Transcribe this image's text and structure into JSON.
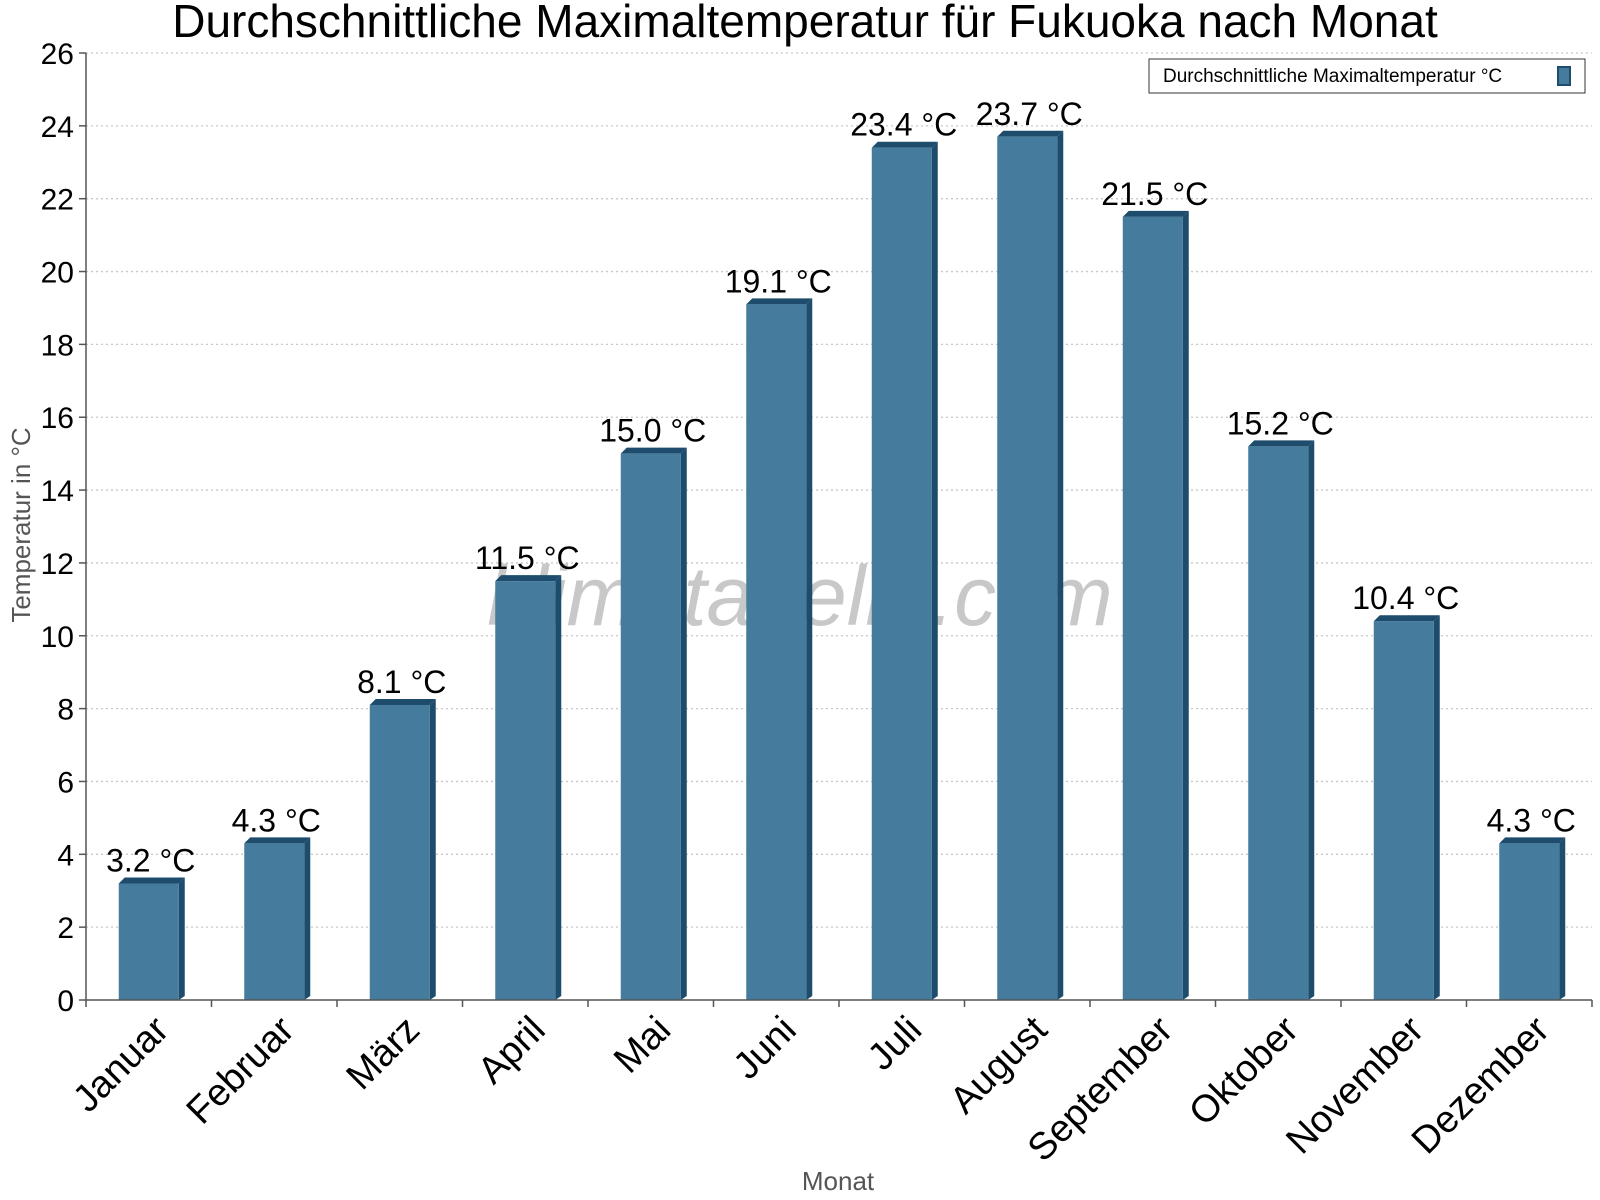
{
  "chart_data": {
    "type": "bar",
    "title": "Durchschnittliche Maximaltemperatur für Fukuoka nach Monat",
    "xlabel": "Monat",
    "ylabel": "Temperatur in °C",
    "categories": [
      "Januar",
      "Februar",
      "März",
      "April",
      "Mai",
      "Juni",
      "Juli",
      "August",
      "September",
      "Oktober",
      "November",
      "Dezember"
    ],
    "series": [
      {
        "name": "Durchschnittliche Maximaltemperatur °C",
        "values": [
          3.2,
          4.3,
          8.1,
          11.5,
          15.0,
          19.1,
          23.4,
          23.7,
          21.5,
          15.2,
          10.4,
          4.3
        ],
        "labels": [
          "3.2 °C",
          "4.3 °C",
          "8.1 °C",
          "11.5 °C",
          "15.0 °C",
          "19.1 °C",
          "23.4 °C",
          "23.7 °C",
          "21.5 °C",
          "15.2 °C",
          "10.4 °C",
          "4.3 °C"
        ]
      }
    ],
    "ylim": [
      0,
      26
    ],
    "yticks": [
      0,
      2,
      4,
      6,
      8,
      10,
      12,
      14,
      16,
      18,
      20,
      22,
      24,
      26
    ],
    "grid": true,
    "legend_position": "top-right",
    "watermark": "klimatabelle.com",
    "colors": {
      "bar_front": "#457b9d",
      "bar_side": "#1d4c6c",
      "bar_top": "#1d4c6c",
      "grid": "#c8c8c8",
      "axis": "#555555"
    }
  }
}
